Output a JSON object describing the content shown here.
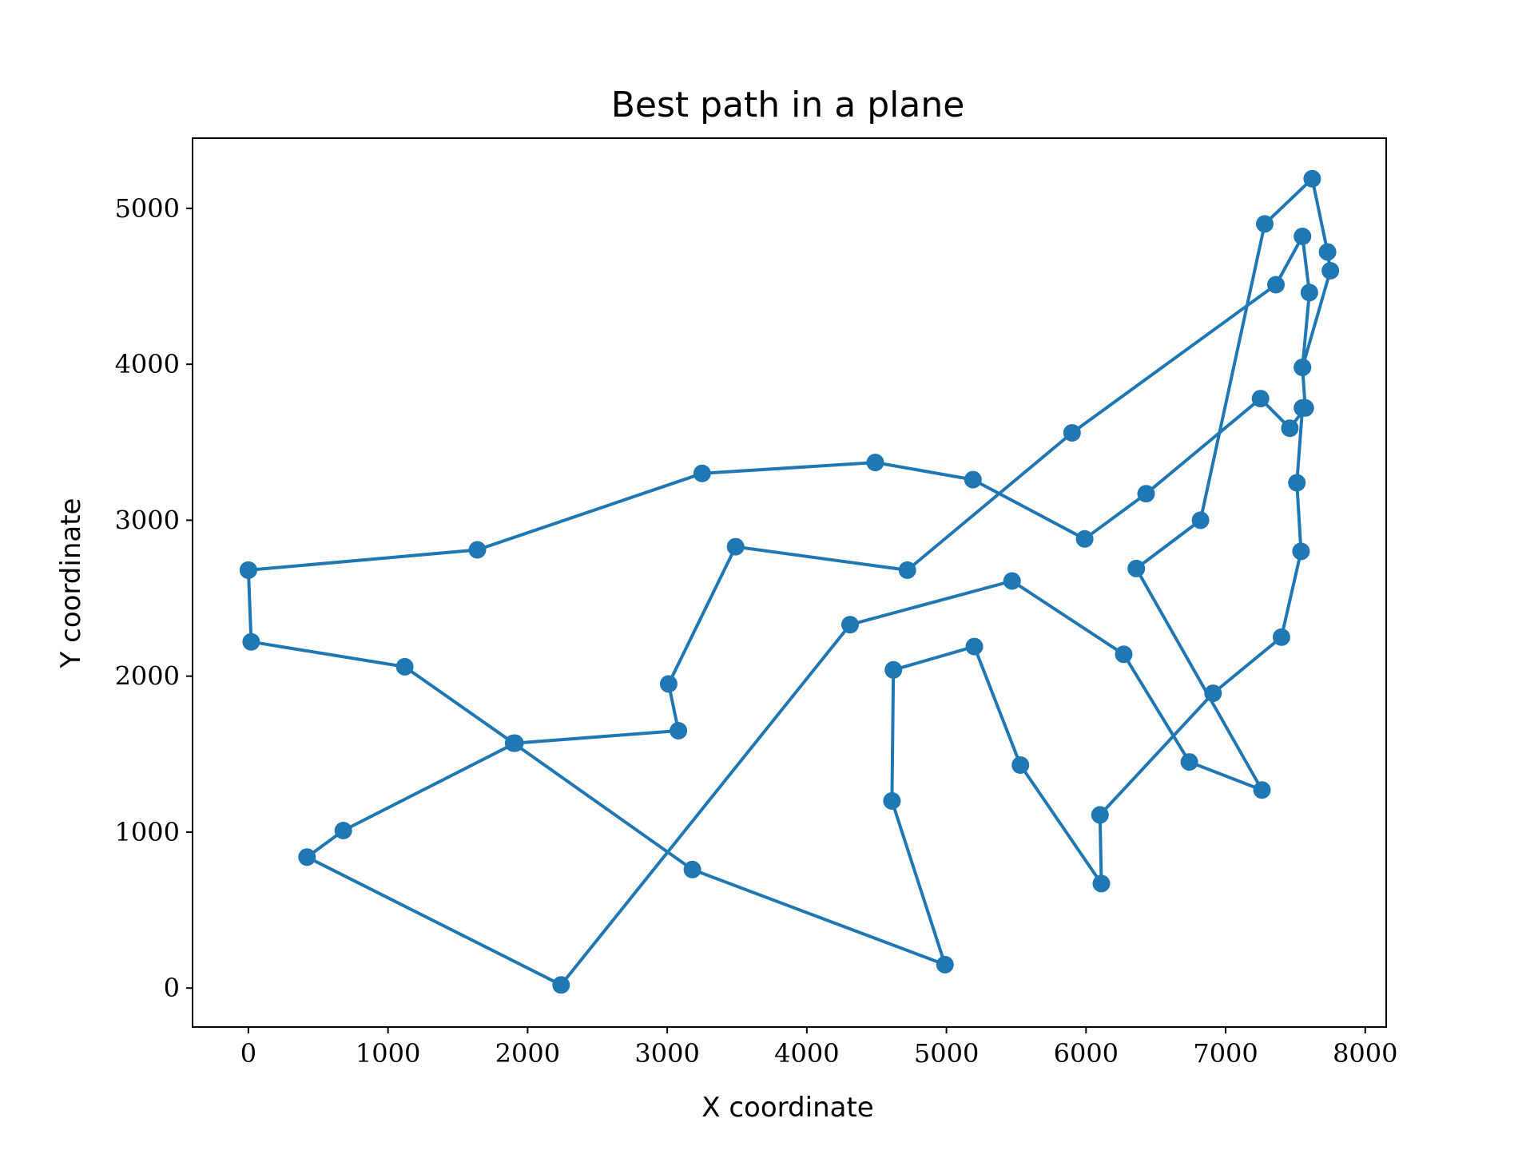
{
  "chart_data": {
    "type": "line",
    "title": "Best path in a plane",
    "xlabel": "X coordinate",
    "ylabel": "Y coordinate",
    "xlim": [
      -400,
      8150
    ],
    "ylim": [
      -250,
      5450
    ],
    "grid": false,
    "legend": "none",
    "color": "#1f77b4",
    "x_ticks": [
      0,
      1000,
      2000,
      3000,
      4000,
      5000,
      6000,
      7000,
      8000
    ],
    "y_ticks": [
      0,
      1000,
      2000,
      3000,
      4000,
      5000
    ],
    "x_tick_labels": [
      "0",
      "1000",
      "2000",
      "3000",
      "4000",
      "5000",
      "6000",
      "7000",
      "8000"
    ],
    "y_tick_labels": [
      "0",
      "1000",
      "2000",
      "3000",
      "4000",
      "5000"
    ],
    "series": [
      {
        "marker": "circle",
        "points": [
          [
            0,
            2680
          ],
          [
            1640,
            2810
          ],
          [
            3250,
            3300
          ],
          [
            4490,
            3370
          ],
          [
            5190,
            3260
          ],
          [
            5990,
            2880
          ],
          [
            6430,
            3170
          ],
          [
            7250,
            3780
          ],
          [
            7460,
            3590
          ],
          [
            7570,
            3720
          ],
          [
            7550,
            3980
          ],
          [
            7600,
            4460
          ],
          [
            7550,
            4820
          ],
          [
            7360,
            4510
          ],
          [
            5900,
            3560
          ],
          [
            4720,
            2680
          ],
          [
            3490,
            2830
          ],
          [
            3010,
            1950
          ],
          [
            3080,
            1650
          ],
          [
            1910,
            1570
          ],
          [
            680,
            1010
          ],
          [
            420,
            840
          ],
          [
            2240,
            20
          ],
          [
            4310,
            2330
          ],
          [
            5470,
            2610
          ],
          [
            6270,
            2140
          ],
          [
            6740,
            1450
          ],
          [
            7260,
            1270
          ],
          [
            6360,
            2690
          ],
          [
            6820,
            3000
          ],
          [
            7280,
            4900
          ],
          [
            7620,
            5190
          ],
          [
            7730,
            4720
          ],
          [
            7750,
            4600
          ],
          [
            7550,
            3980
          ]
        ]
      },
      {
        "marker": "circle",
        "points": [
          [
            7550,
            3720
          ],
          [
            7510,
            3240
          ],
          [
            7540,
            2800
          ],
          [
            7400,
            2250
          ],
          [
            6910,
            1890
          ],
          [
            6100,
            1110
          ],
          [
            6110,
            670
          ],
          [
            5530,
            1430
          ],
          [
            5200,
            2190
          ],
          [
            4620,
            2040
          ],
          [
            4610,
            1200
          ],
          [
            4990,
            150
          ],
          [
            3180,
            760
          ],
          [
            1900,
            1570
          ],
          [
            1120,
            2060
          ],
          [
            20,
            2220
          ],
          [
            0,
            2680
          ]
        ]
      }
    ]
  }
}
